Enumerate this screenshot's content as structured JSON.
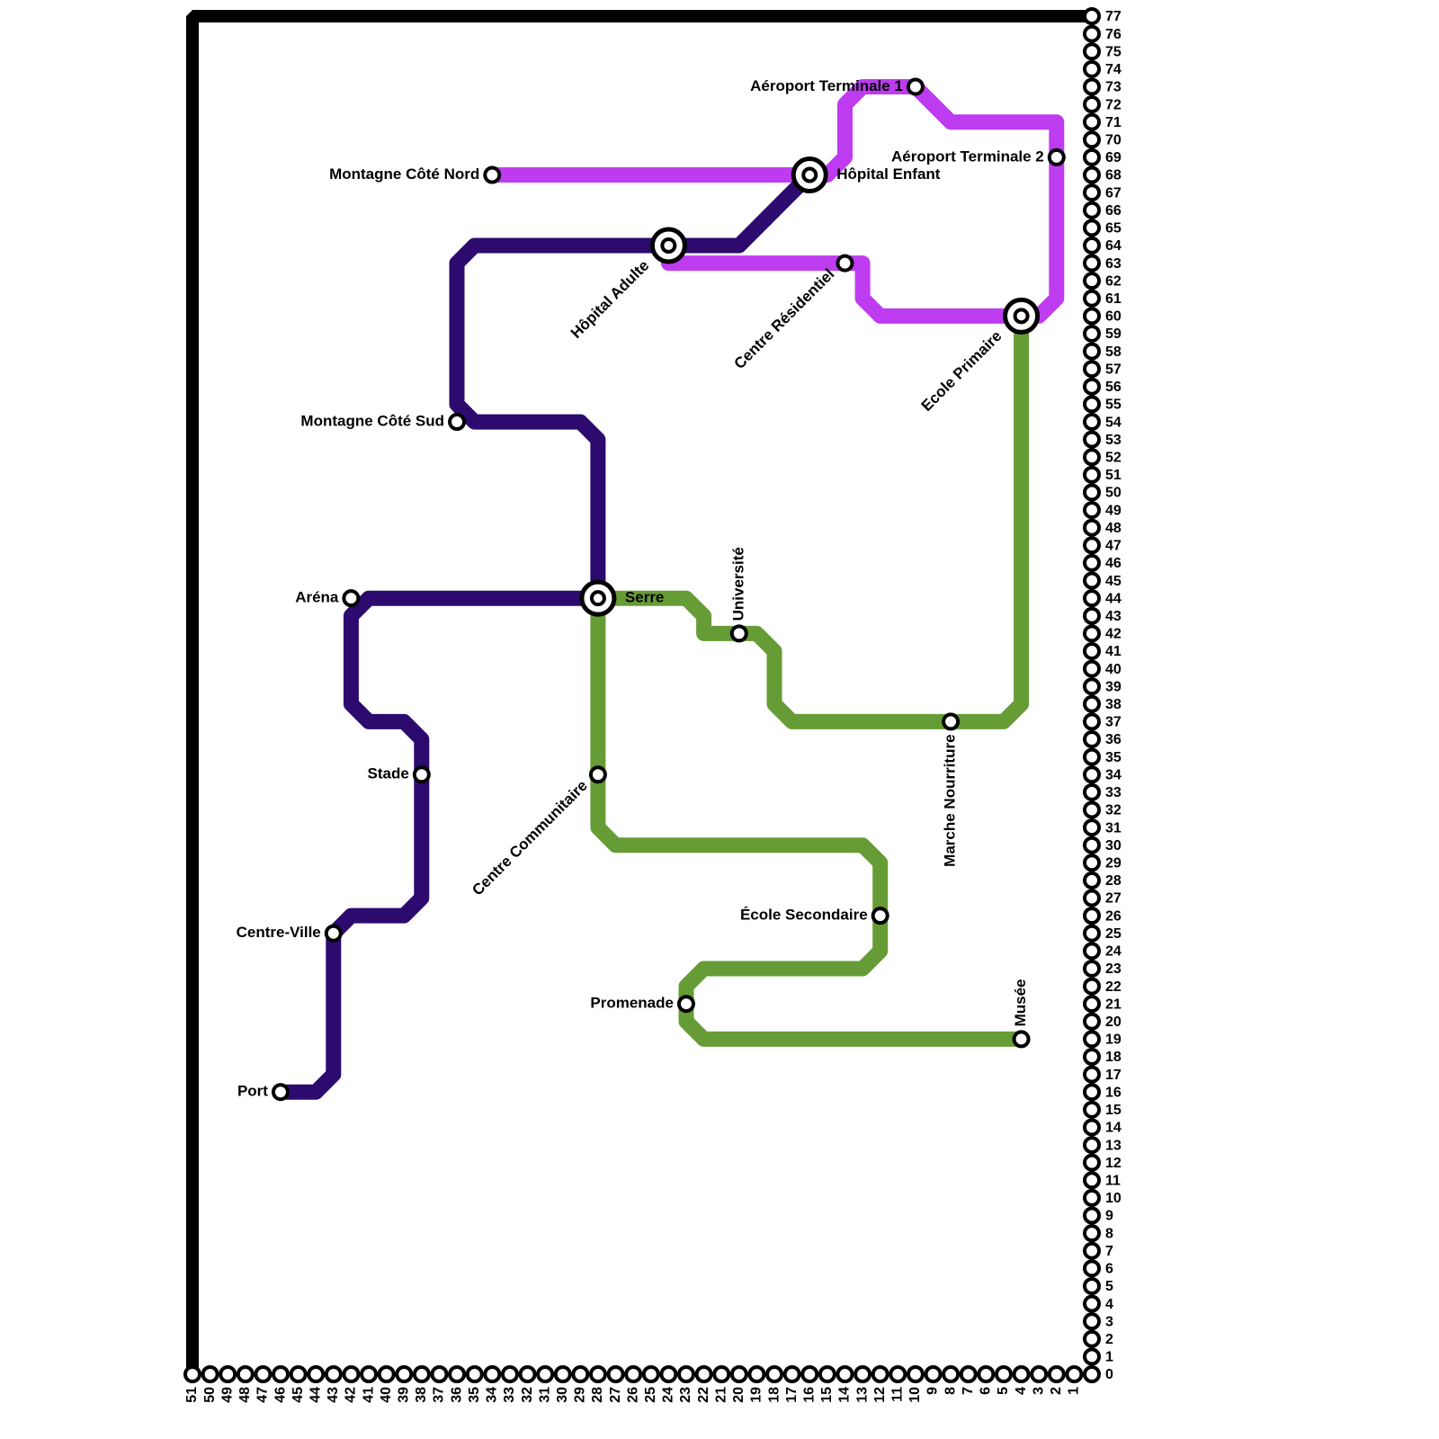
{
  "stations": [
    {
      "name": "Montagne Côté Nord"
    },
    {
      "name": "Hôpital Enfant"
    },
    {
      "name": "Aéroport Terminale 1"
    },
    {
      "name": "Aéroport Terminale 2"
    },
    {
      "name": "Hôpital Adulte"
    },
    {
      "name": "Centre Résidentiel"
    },
    {
      "name": "Ecole Primaire"
    },
    {
      "name": "Montagne Côté Sud"
    },
    {
      "name": "Aréna"
    },
    {
      "name": "Serre"
    },
    {
      "name": "Université"
    },
    {
      "name": "Marche Nourriture"
    },
    {
      "name": "Stade"
    },
    {
      "name": "Centre Communitaire"
    },
    {
      "name": "École Secondaire"
    },
    {
      "name": "Centre-Ville"
    },
    {
      "name": "Promenade"
    },
    {
      "name": "Musée"
    },
    {
      "name": "Port"
    }
  ],
  "axis": {
    "right": [
      0,
      1,
      2,
      3,
      4,
      5,
      6,
      7,
      8,
      9,
      10,
      11,
      12,
      13,
      14,
      15,
      16,
      17,
      18,
      19,
      20,
      21,
      22,
      23,
      24,
      25,
      26,
      27,
      28,
      29,
      30,
      31,
      32,
      33,
      34,
      35,
      36,
      37,
      38,
      39,
      40,
      41,
      42,
      43,
      44,
      45,
      46,
      47,
      48,
      49,
      50,
      51,
      52,
      53,
      54,
      55,
      56,
      57,
      58,
      59,
      60,
      61,
      62,
      63,
      64,
      65,
      66,
      67,
      68,
      69,
      70,
      71,
      72,
      73,
      74,
      75,
      76,
      77
    ],
    "bottom": [
      51,
      50,
      49,
      48,
      47,
      46,
      45,
      44,
      43,
      42,
      41,
      40,
      39,
      38,
      37,
      36,
      35,
      34,
      33,
      32,
      31,
      30,
      29,
      28,
      27,
      26,
      25,
      24,
      23,
      22,
      21,
      20,
      19,
      18,
      17,
      16,
      15,
      14,
      13,
      12,
      11,
      10,
      9,
      8,
      7,
      6,
      5,
      4,
      3,
      2,
      1
    ]
  }
}
